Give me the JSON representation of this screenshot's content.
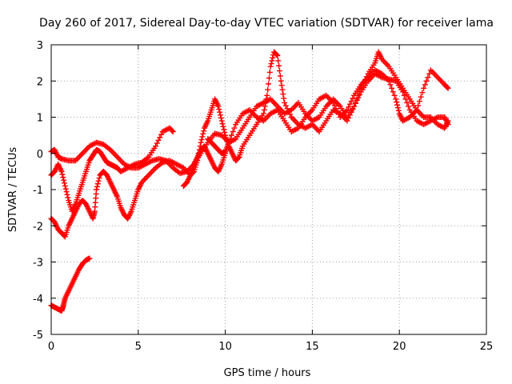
{
  "chart_data": {
    "type": "scatter",
    "title": "Day 260 of 2017, Sidereal Day-to-day VTEC variation (SDTVAR) for receiver lama",
    "xlabel": "GPS time / hours",
    "ylabel": "SDTVAR / TECUs",
    "xlim": [
      0,
      25
    ],
    "ylim": [
      -5,
      3
    ],
    "xticks": [
      "0",
      "5",
      "10",
      "15",
      "20",
      "25"
    ],
    "yticks": [
      "-5",
      "-4",
      "-3",
      "-2",
      "-1",
      "0",
      "1",
      "2",
      "3"
    ],
    "grid": true,
    "marker": "plus",
    "marker_color": "#ff0000",
    "series": [
      {
        "points": [
          [
            0.0,
            0.05
          ],
          [
            0.2,
            0.1
          ],
          [
            0.4,
            -0.1
          ],
          [
            0.6,
            -0.15
          ],
          [
            1.0,
            -0.2
          ],
          [
            1.4,
            -0.2
          ],
          [
            1.8,
            0.0
          ],
          [
            2.2,
            0.2
          ],
          [
            2.6,
            0.3
          ],
          [
            3.0,
            0.25
          ],
          [
            3.4,
            0.1
          ],
          [
            3.8,
            -0.1
          ],
          [
            4.2,
            -0.3
          ],
          [
            4.6,
            -0.4
          ],
          [
            5.0,
            -0.4
          ],
          [
            5.4,
            -0.3
          ],
          [
            5.8,
            -0.2
          ],
          [
            6.2,
            -0.15
          ],
          [
            6.6,
            -0.2
          ],
          [
            7.0,
            -0.4
          ],
          [
            7.4,
            -0.55
          ],
          [
            7.8,
            -0.5
          ],
          [
            8.2,
            -0.3
          ],
          [
            8.6,
            0.0
          ],
          [
            9.0,
            0.3
          ],
          [
            9.4,
            0.55
          ],
          [
            9.8,
            0.5
          ],
          [
            10.2,
            0.3
          ],
          [
            10.6,
            0.4
          ],
          [
            11.0,
            0.7
          ],
          [
            11.4,
            1.0
          ],
          [
            11.8,
            1.3
          ],
          [
            12.2,
            1.4
          ],
          [
            12.6,
            1.5
          ],
          [
            13.0,
            1.3
          ],
          [
            13.4,
            1.1
          ],
          [
            13.8,
            1.2
          ],
          [
            14.2,
            1.4
          ],
          [
            14.6,
            1.1
          ],
          [
            15.0,
            0.9
          ],
          [
            15.4,
            1.0
          ],
          [
            15.8,
            1.3
          ],
          [
            16.2,
            1.5
          ],
          [
            16.6,
            1.3
          ],
          [
            17.0,
            1.0
          ],
          [
            17.4,
            1.3
          ],
          [
            17.8,
            1.7
          ],
          [
            18.2,
            2.0
          ],
          [
            18.6,
            2.2
          ],
          [
            19.0,
            2.1
          ],
          [
            19.4,
            2.05
          ],
          [
            19.8,
            2.0
          ],
          [
            20.2,
            1.7
          ],
          [
            20.6,
            1.2
          ],
          [
            21.0,
            0.9
          ],
          [
            21.4,
            0.8
          ],
          [
            21.8,
            0.9
          ],
          [
            22.2,
            1.0
          ],
          [
            22.6,
            1.0
          ],
          [
            22.8,
            0.8
          ]
        ]
      },
      {
        "points": [
          [
            0.0,
            -0.6
          ],
          [
            0.2,
            -0.5
          ],
          [
            0.4,
            -0.3
          ],
          [
            0.6,
            -0.5
          ],
          [
            0.8,
            -0.9
          ],
          [
            1.0,
            -1.3
          ],
          [
            1.2,
            -1.6
          ],
          [
            1.4,
            -1.4
          ],
          [
            1.6,
            -1.1
          ],
          [
            1.8,
            -0.8
          ],
          [
            2.0,
            -0.5
          ],
          [
            2.2,
            -0.2
          ],
          [
            2.4,
            -0.05
          ],
          [
            2.6,
            0.1
          ],
          [
            2.8,
            0.05
          ],
          [
            3.0,
            -0.1
          ],
          [
            3.2,
            -0.25
          ],
          [
            3.4,
            -0.3
          ],
          [
            3.6,
            -0.35
          ],
          [
            3.8,
            -0.4
          ],
          [
            4.0,
            -0.5
          ],
          [
            4.4,
            -0.4
          ],
          [
            4.8,
            -0.3
          ],
          [
            5.2,
            -0.25
          ],
          [
            5.6,
            -0.1
          ],
          [
            6.0,
            0.2
          ],
          [
            6.4,
            0.6
          ],
          [
            6.8,
            0.7
          ],
          [
            7.0,
            0.6
          ]
        ]
      },
      {
        "points": [
          [
            0.0,
            -1.8
          ],
          [
            0.2,
            -1.9
          ],
          [
            0.4,
            -2.1
          ],
          [
            0.6,
            -2.2
          ],
          [
            0.8,
            -2.3
          ],
          [
            1.0,
            -2.0
          ],
          [
            1.2,
            -1.8
          ],
          [
            1.4,
            -1.6
          ],
          [
            1.6,
            -1.4
          ],
          [
            1.8,
            -1.3
          ],
          [
            2.0,
            -1.4
          ],
          [
            2.2,
            -1.6
          ],
          [
            2.4,
            -1.8
          ],
          [
            2.5,
            -1.6
          ],
          [
            2.6,
            -1.0
          ],
          [
            2.8,
            -0.6
          ],
          [
            3.0,
            -0.5
          ],
          [
            3.2,
            -0.6
          ],
          [
            3.4,
            -0.8
          ],
          [
            3.6,
            -1.0
          ],
          [
            3.8,
            -1.2
          ],
          [
            4.0,
            -1.5
          ],
          [
            4.2,
            -1.7
          ],
          [
            4.4,
            -1.8
          ],
          [
            4.6,
            -1.6
          ],
          [
            4.8,
            -1.3
          ],
          [
            5.0,
            -1.0
          ],
          [
            5.2,
            -0.8
          ],
          [
            5.6,
            -0.6
          ],
          [
            6.0,
            -0.4
          ],
          [
            6.4,
            -0.25
          ],
          [
            6.8,
            -0.2
          ],
          [
            7.2,
            -0.3
          ],
          [
            7.6,
            -0.4
          ],
          [
            8.0,
            -0.6
          ],
          [
            8.2,
            -0.5
          ],
          [
            8.4,
            -0.2
          ],
          [
            8.6,
            0.3
          ],
          [
            8.8,
            0.7
          ],
          [
            9.0,
            0.9
          ],
          [
            9.2,
            1.2
          ],
          [
            9.4,
            1.5
          ],
          [
            9.6,
            1.3
          ],
          [
            9.8,
            0.9
          ],
          [
            10.0,
            0.5
          ],
          [
            10.2,
            0.2
          ],
          [
            10.4,
            0.0
          ],
          [
            10.6,
            -0.2
          ],
          [
            10.8,
            -0.1
          ],
          [
            11.0,
            0.2
          ],
          [
            11.4,
            0.5
          ],
          [
            11.8,
            0.8
          ],
          [
            12.2,
            1.1
          ],
          [
            12.4,
            1.6
          ],
          [
            12.6,
            2.4
          ],
          [
            12.8,
            2.8
          ],
          [
            13.0,
            2.7
          ],
          [
            13.2,
            2.0
          ],
          [
            13.4,
            1.4
          ],
          [
            13.8,
            1.0
          ],
          [
            14.2,
            0.8
          ],
          [
            14.6,
            0.7
          ],
          [
            15.0,
            0.8
          ],
          [
            15.4,
            0.6
          ],
          [
            15.8,
            0.9
          ],
          [
            16.2,
            1.2
          ],
          [
            16.6,
            1.1
          ],
          [
            17.0,
            0.9
          ],
          [
            17.4,
            1.3
          ],
          [
            17.8,
            1.8
          ],
          [
            18.2,
            2.2
          ],
          [
            18.6,
            2.5
          ],
          [
            18.8,
            2.8
          ],
          [
            19.0,
            2.6
          ],
          [
            19.4,
            2.4
          ],
          [
            19.8,
            2.1
          ],
          [
            20.2,
            1.8
          ],
          [
            20.6,
            1.5
          ],
          [
            21.0,
            1.2
          ],
          [
            21.4,
            1.0
          ],
          [
            21.8,
            1.0
          ],
          [
            22.2,
            0.8
          ],
          [
            22.6,
            0.7
          ],
          [
            22.8,
            0.9
          ]
        ]
      },
      {
        "points": [
          [
            9.0,
            0.4
          ],
          [
            9.2,
            0.3
          ],
          [
            9.4,
            0.2
          ],
          [
            9.6,
            0.1
          ],
          [
            9.8,
            0.0
          ],
          [
            10.0,
            0.05
          ],
          [
            10.2,
            0.3
          ],
          [
            10.6,
            0.8
          ],
          [
            11.0,
            1.1
          ],
          [
            11.4,
            1.2
          ],
          [
            11.8,
            1.0
          ],
          [
            12.2,
            0.9
          ],
          [
            12.6,
            1.1
          ],
          [
            13.0,
            1.2
          ],
          [
            13.4,
            0.9
          ],
          [
            13.8,
            0.6
          ],
          [
            14.2,
            0.7
          ],
          [
            14.6,
            1.0
          ],
          [
            15.0,
            1.2
          ],
          [
            15.4,
            1.5
          ],
          [
            15.8,
            1.6
          ],
          [
            16.2,
            1.4
          ],
          [
            16.6,
            1.0
          ],
          [
            17.0,
            1.2
          ],
          [
            17.4,
            1.6
          ],
          [
            17.8,
            1.9
          ],
          [
            18.2,
            2.1
          ],
          [
            18.6,
            2.3
          ],
          [
            19.0,
            2.2
          ],
          [
            19.4,
            2.0
          ],
          [
            19.8,
            1.5
          ],
          [
            20.0,
            1.1
          ],
          [
            20.2,
            0.9
          ],
          [
            20.6,
            1.0
          ],
          [
            21.0,
            1.2
          ],
          [
            21.4,
            1.8
          ],
          [
            21.8,
            2.3
          ],
          [
            22.2,
            2.1
          ],
          [
            22.6,
            1.9
          ],
          [
            22.8,
            1.8
          ]
        ]
      },
      {
        "points": [
          [
            0.0,
            -4.2
          ],
          [
            0.2,
            -4.25
          ],
          [
            0.4,
            -4.3
          ],
          [
            0.6,
            -4.35
          ],
          [
            0.7,
            -4.2
          ],
          [
            0.8,
            -4.0
          ],
          [
            1.0,
            -3.8
          ],
          [
            1.2,
            -3.6
          ],
          [
            1.4,
            -3.4
          ],
          [
            1.6,
            -3.2
          ],
          [
            1.8,
            -3.05
          ],
          [
            2.0,
            -2.95
          ],
          [
            2.2,
            -2.9
          ]
        ]
      },
      {
        "points": [
          [
            7.6,
            -0.9
          ],
          [
            7.8,
            -0.8
          ],
          [
            8.0,
            -0.6
          ],
          [
            8.2,
            -0.3
          ],
          [
            8.4,
            -0.1
          ],
          [
            8.6,
            0.1
          ],
          [
            8.8,
            0.2
          ],
          [
            9.0,
            0.0
          ],
          [
            9.2,
            -0.2
          ],
          [
            9.4,
            -0.4
          ],
          [
            9.6,
            -0.5
          ],
          [
            9.8,
            -0.3
          ],
          [
            10.0,
            0.0
          ]
        ]
      }
    ]
  }
}
